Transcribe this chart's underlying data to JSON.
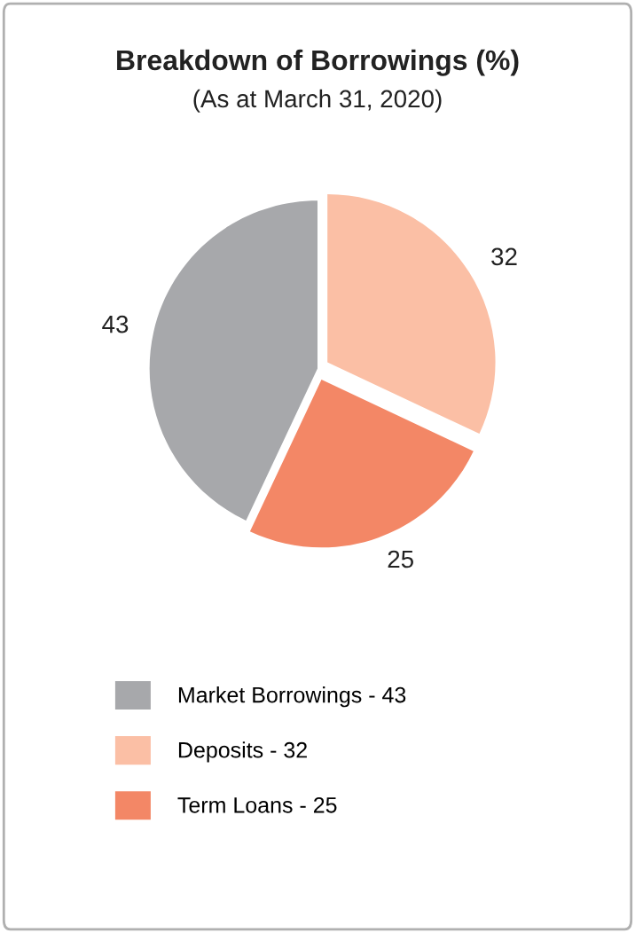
{
  "chart_data": {
    "type": "pie",
    "title": "Breakdown of Borrowings (%)",
    "subtitle": "(As at March 31, 2020)",
    "categories": [
      "Market Borrowings - 43",
      "Deposits - 32",
      "Term Loans - 25"
    ],
    "values": [
      43,
      32,
      25
    ],
    "colors": [
      "#a7a8ab",
      "#fbbfa5",
      "#f38766"
    ],
    "data_labels": true,
    "legend": "bottom"
  }
}
